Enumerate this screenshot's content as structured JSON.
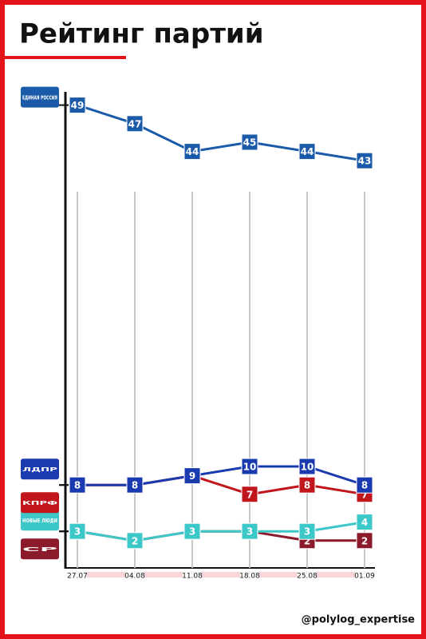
{
  "chart_data": {
    "type": "line",
    "title": "Рейтинг партий",
    "footer": "@polylog_expertise",
    "categories": [
      "27.07",
      "04.08",
      "11.08",
      "18.08",
      "25.08",
      "01.09"
    ],
    "ylim": [
      0,
      50
    ],
    "series": [
      {
        "name": "ЕДИНАЯ РОССИЯ",
        "color": "#1a5aa8",
        "values": [
          49,
          47,
          44,
          45,
          44,
          43
        ]
      },
      {
        "name": "СР",
        "color": "#8b1a2a",
        "values": [
          3,
          2,
          3,
          3,
          2,
          2
        ]
      },
      {
        "name": "НОВЫЕ ЛЮДИ",
        "color": "#3cc8c8",
        "values": [
          3,
          2,
          3,
          3,
          3,
          4
        ]
      },
      {
        "name": "КПРФ",
        "color": "#c0161c",
        "values": [
          8,
          8,
          9,
          7,
          8,
          7
        ]
      },
      {
        "name": "ЛДПР",
        "color": "#1a3ab0",
        "values": [
          8,
          8,
          9,
          10,
          10,
          8
        ]
      }
    ]
  }
}
